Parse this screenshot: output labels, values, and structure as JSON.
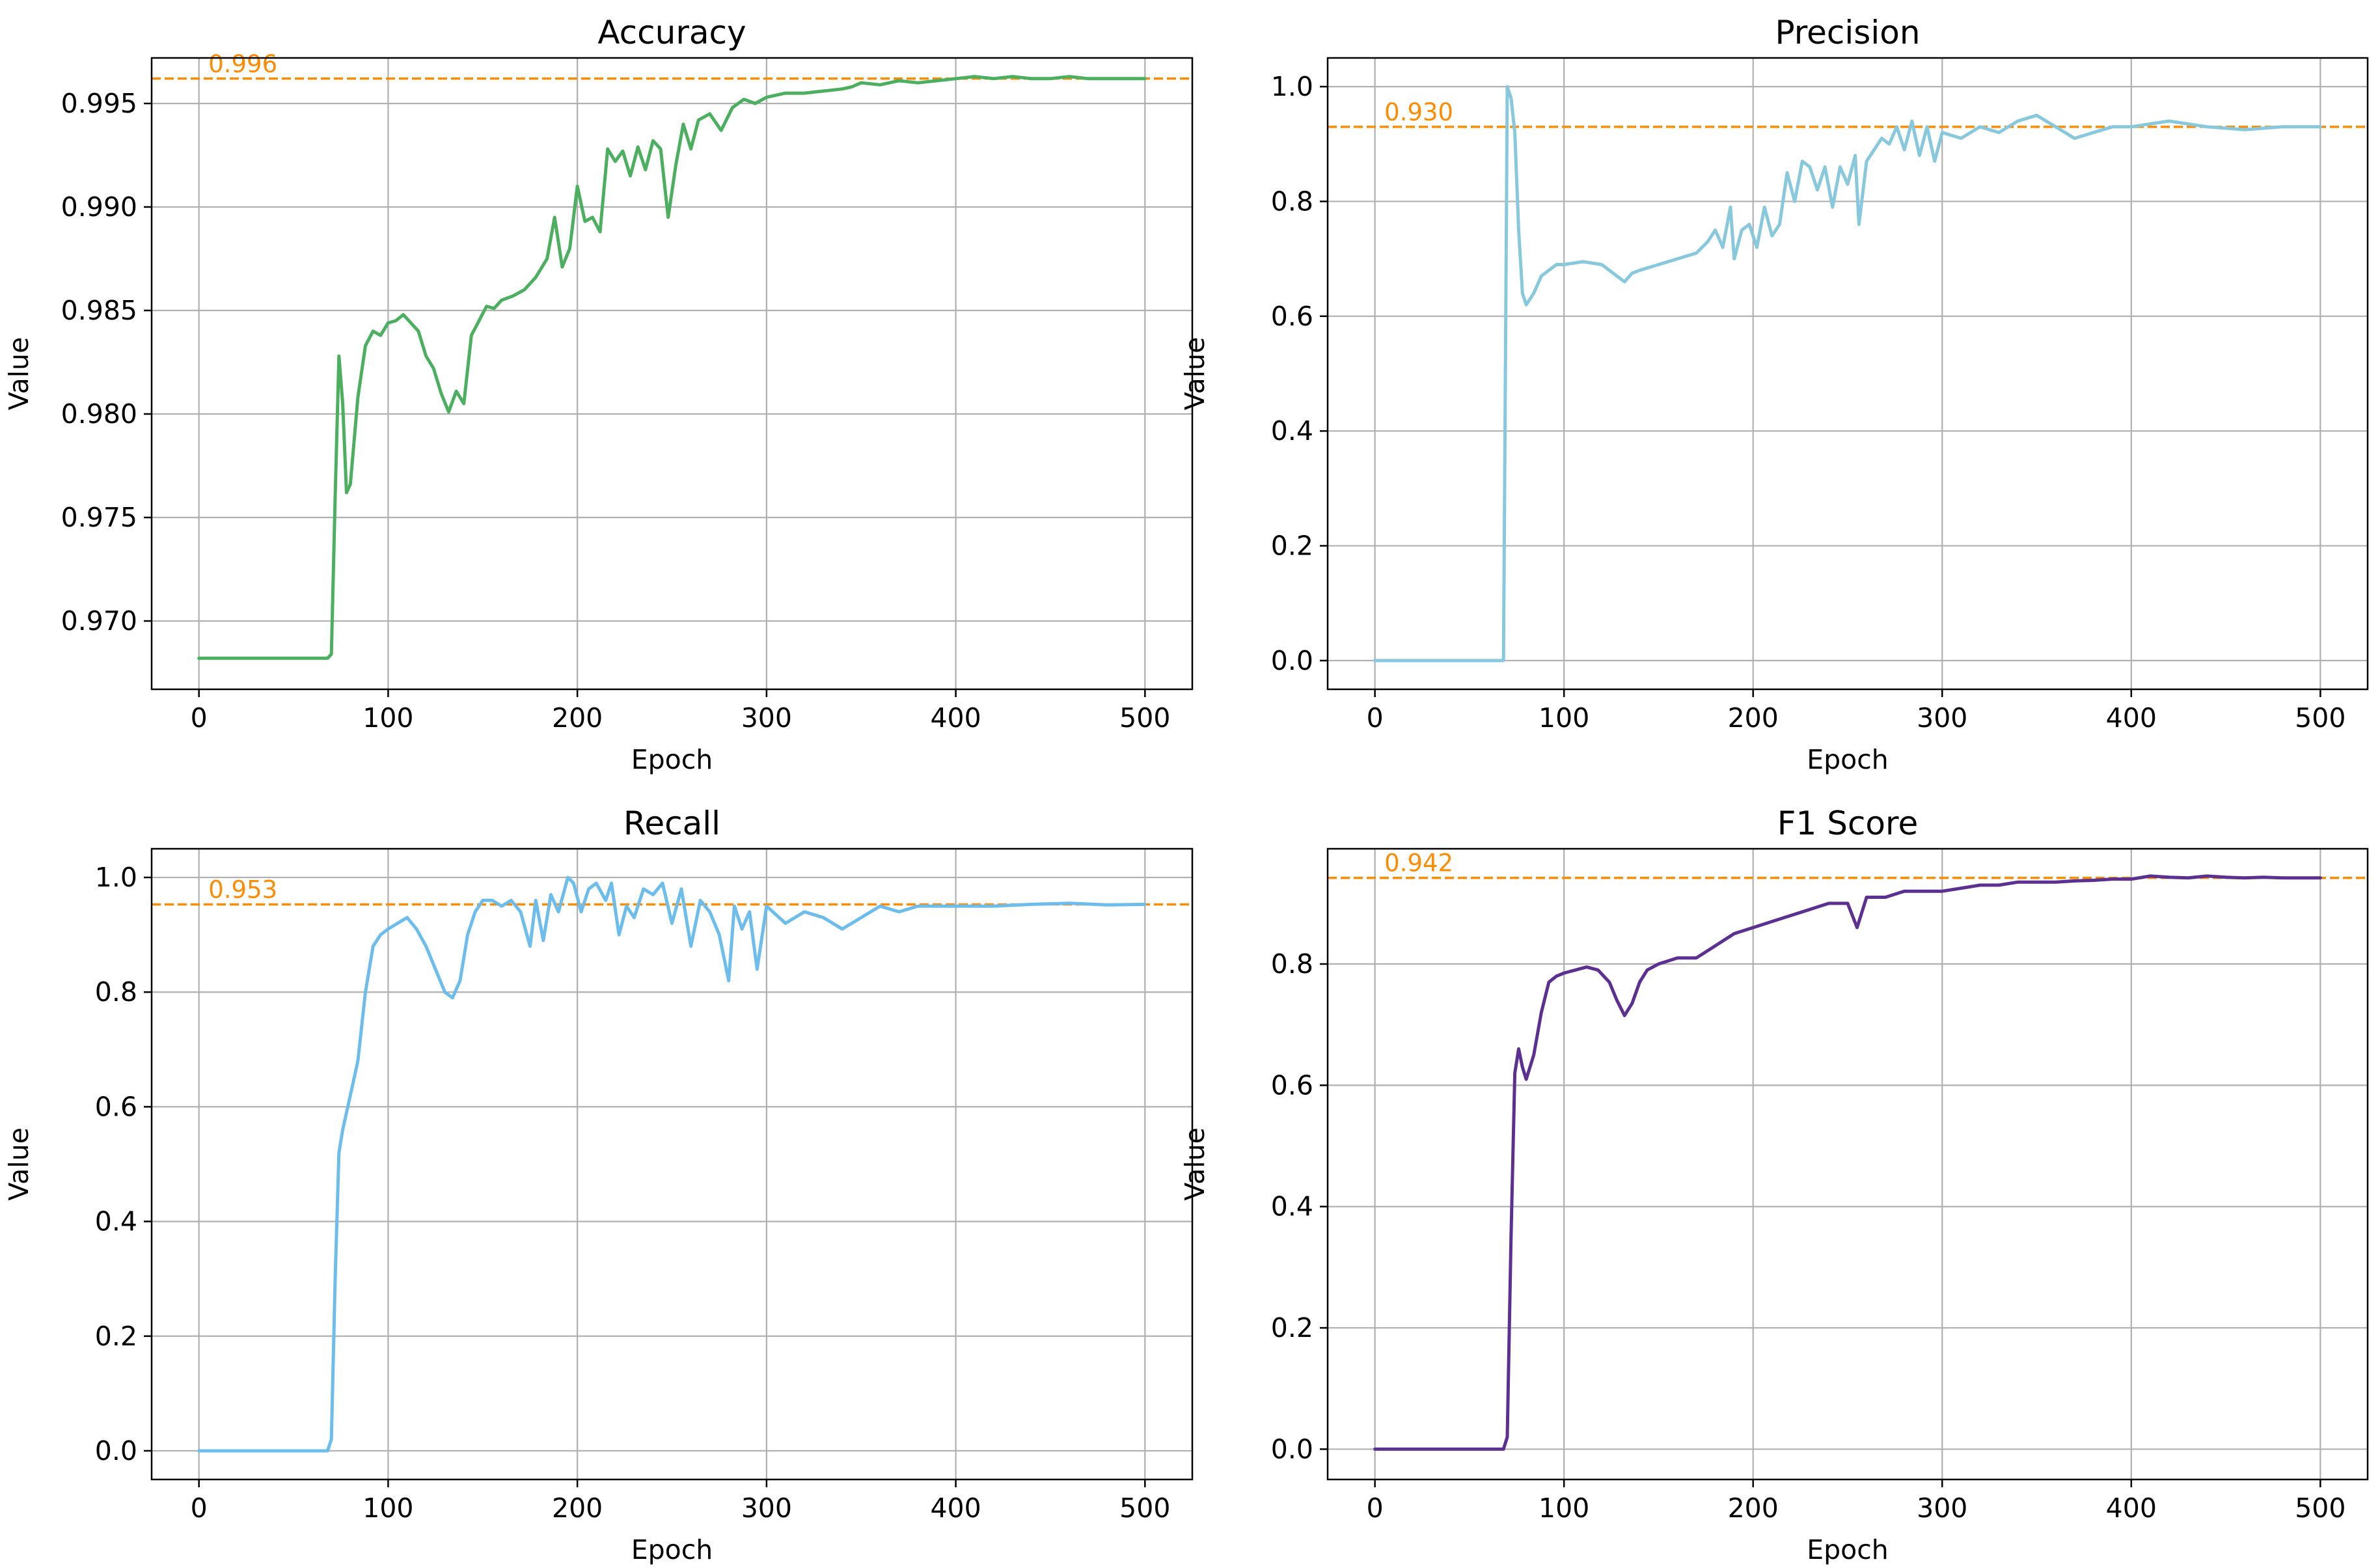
{
  "chart_data": [
    {
      "type": "line",
      "title": "Accuracy",
      "xlabel": "Epoch",
      "ylabel": "Value",
      "color": "#4caf5f",
      "xlim": [
        -25,
        525
      ],
      "ylim": [
        0.9667,
        0.9972
      ],
      "xticks": [
        0,
        100,
        200,
        300,
        400,
        500
      ],
      "yticks": [
        0.97,
        0.975,
        0.98,
        0.985,
        0.99,
        0.995
      ],
      "ytick_labels": [
        "0.970",
        "0.975",
        "0.980",
        "0.985",
        "0.990",
        "0.995"
      ],
      "reference": {
        "value": 0.9962,
        "label": "0.996",
        "color": "#ff8c00"
      },
      "series": [
        {
          "name": "Accuracy",
          "x": [
            0,
            68,
            70,
            72,
            74,
            76,
            78,
            80,
            84,
            88,
            92,
            96,
            100,
            104,
            108,
            112,
            116,
            120,
            124,
            128,
            132,
            136,
            140,
            144,
            148,
            152,
            156,
            160,
            166,
            172,
            178,
            184,
            188,
            192,
            196,
            200,
            204,
            208,
            212,
            216,
            220,
            224,
            228,
            232,
            236,
            240,
            244,
            248,
            252,
            256,
            260,
            264,
            270,
            276,
            282,
            288,
            294,
            300,
            310,
            320,
            330,
            340,
            345,
            350,
            360,
            370,
            380,
            390,
            400,
            410,
            420,
            430,
            440,
            450,
            460,
            470,
            480,
            490,
            500
          ],
          "y": [
            0.9682,
            0.9682,
            0.9684,
            0.976,
            0.9828,
            0.9805,
            0.9762,
            0.9766,
            0.9808,
            0.9833,
            0.984,
            0.9838,
            0.9844,
            0.9845,
            0.9848,
            0.9844,
            0.984,
            0.9828,
            0.9822,
            0.981,
            0.9801,
            0.9811,
            0.9805,
            0.9838,
            0.9845,
            0.9852,
            0.9851,
            0.9855,
            0.9857,
            0.986,
            0.9866,
            0.9875,
            0.9895,
            0.9871,
            0.988,
            0.991,
            0.9893,
            0.9895,
            0.9888,
            0.9928,
            0.9922,
            0.9927,
            0.9915,
            0.9929,
            0.9918,
            0.9932,
            0.9928,
            0.9895,
            0.992,
            0.994,
            0.9928,
            0.9942,
            0.9945,
            0.9937,
            0.9948,
            0.9952,
            0.995,
            0.9953,
            0.9955,
            0.9955,
            0.9956,
            0.9957,
            0.9958,
            0.996,
            0.9959,
            0.9961,
            0.996,
            0.9961,
            0.9962,
            0.9963,
            0.9962,
            0.9963,
            0.9962,
            0.9962,
            0.9963,
            0.9962,
            0.9962,
            0.9962,
            0.9962
          ]
        }
      ]
    },
    {
      "type": "line",
      "title": "Precision",
      "xlabel": "Epoch",
      "ylabel": "Value",
      "color": "#88c8dc",
      "xlim": [
        -25,
        525
      ],
      "ylim": [
        -0.05,
        1.05
      ],
      "xticks": [
        0,
        100,
        200,
        300,
        400,
        500
      ],
      "yticks": [
        0.0,
        0.2,
        0.4,
        0.6,
        0.8,
        1.0
      ],
      "ytick_labels": [
        "0.0",
        "0.2",
        "0.4",
        "0.6",
        "0.8",
        "1.0"
      ],
      "reference": {
        "value": 0.93,
        "label": "0.930",
        "color": "#ff8c00"
      },
      "series": [
        {
          "name": "Precision",
          "x": [
            0,
            68,
            69,
            70,
            72,
            74,
            76,
            78,
            80,
            84,
            88,
            92,
            96,
            100,
            110,
            120,
            128,
            132,
            136,
            140,
            150,
            160,
            170,
            176,
            180,
            184,
            188,
            190,
            194,
            198,
            202,
            206,
            210,
            214,
            218,
            222,
            226,
            230,
            234,
            238,
            242,
            246,
            250,
            254,
            256,
            260,
            264,
            268,
            272,
            276,
            280,
            284,
            288,
            292,
            296,
            300,
            310,
            320,
            330,
            340,
            350,
            360,
            370,
            380,
            390,
            400,
            420,
            440,
            460,
            480,
            500
          ],
          "y": [
            0.0,
            0.0,
            0.5,
            1.0,
            0.98,
            0.92,
            0.75,
            0.64,
            0.62,
            0.64,
            0.67,
            0.68,
            0.69,
            0.69,
            0.695,
            0.69,
            0.67,
            0.66,
            0.675,
            0.68,
            0.69,
            0.7,
            0.71,
            0.73,
            0.75,
            0.72,
            0.79,
            0.7,
            0.75,
            0.76,
            0.72,
            0.79,
            0.74,
            0.76,
            0.85,
            0.8,
            0.87,
            0.86,
            0.82,
            0.86,
            0.79,
            0.86,
            0.83,
            0.88,
            0.76,
            0.87,
            0.89,
            0.91,
            0.9,
            0.93,
            0.89,
            0.94,
            0.88,
            0.93,
            0.87,
            0.92,
            0.91,
            0.93,
            0.92,
            0.94,
            0.95,
            0.93,
            0.91,
            0.92,
            0.93,
            0.93,
            0.94,
            0.93,
            0.925,
            0.93,
            0.93
          ]
        }
      ]
    },
    {
      "type": "line",
      "title": "Recall",
      "xlabel": "Epoch",
      "ylabel": "Value",
      "color": "#6cbcec",
      "xlim": [
        -25,
        525
      ],
      "ylim": [
        -0.05,
        1.05
      ],
      "xticks": [
        0,
        100,
        200,
        300,
        400,
        500
      ],
      "yticks": [
        0.0,
        0.2,
        0.4,
        0.6,
        0.8,
        1.0
      ],
      "ytick_labels": [
        "0.0",
        "0.2",
        "0.4",
        "0.6",
        "0.8",
        "1.0"
      ],
      "reference": {
        "value": 0.953,
        "label": "0.953",
        "color": "#ff8c00"
      },
      "series": [
        {
          "name": "Recall",
          "x": [
            0,
            68,
            70,
            72,
            74,
            76,
            80,
            84,
            88,
            92,
            96,
            100,
            105,
            110,
            115,
            120,
            125,
            130,
            134,
            138,
            142,
            146,
            150,
            155,
            160,
            165,
            170,
            175,
            178,
            182,
            186,
            190,
            195,
            198,
            202,
            206,
            210,
            215,
            218,
            222,
            226,
            230,
            235,
            240,
            245,
            250,
            255,
            260,
            265,
            270,
            275,
            280,
            283,
            287,
            291,
            295,
            300,
            310,
            320,
            330,
            340,
            350,
            360,
            370,
            380,
            400,
            420,
            440,
            460,
            480,
            500
          ],
          "y": [
            0.0,
            0.0,
            0.02,
            0.3,
            0.52,
            0.56,
            0.62,
            0.68,
            0.8,
            0.88,
            0.9,
            0.91,
            0.92,
            0.93,
            0.91,
            0.88,
            0.84,
            0.8,
            0.79,
            0.82,
            0.9,
            0.94,
            0.96,
            0.96,
            0.95,
            0.96,
            0.94,
            0.88,
            0.96,
            0.89,
            0.97,
            0.94,
            1.0,
            0.99,
            0.94,
            0.98,
            0.99,
            0.96,
            0.99,
            0.9,
            0.95,
            0.93,
            0.98,
            0.97,
            0.99,
            0.92,
            0.98,
            0.88,
            0.96,
            0.94,
            0.9,
            0.82,
            0.95,
            0.91,
            0.94,
            0.84,
            0.95,
            0.92,
            0.94,
            0.93,
            0.91,
            0.93,
            0.95,
            0.94,
            0.95,
            0.95,
            0.95,
            0.953,
            0.955,
            0.952,
            0.953
          ]
        }
      ]
    },
    {
      "type": "line",
      "title": "F1 Score",
      "xlabel": "Epoch",
      "ylabel": "Value",
      "color": "#5b3091",
      "xlim": [
        -25,
        525
      ],
      "ylim": [
        -0.05,
        0.99
      ],
      "xticks": [
        0,
        100,
        200,
        300,
        400,
        500
      ],
      "yticks": [
        0.0,
        0.2,
        0.4,
        0.6,
        0.8
      ],
      "ytick_labels": [
        "0.0",
        "0.2",
        "0.4",
        "0.6",
        "0.8"
      ],
      "reference": {
        "value": 0.942,
        "label": "0.942",
        "color": "#ff8c00"
      },
      "series": [
        {
          "name": "F1 Score",
          "x": [
            0,
            68,
            70,
            72,
            74,
            76,
            78,
            80,
            84,
            88,
            92,
            96,
            100,
            106,
            112,
            118,
            124,
            128,
            132,
            136,
            140,
            144,
            150,
            160,
            170,
            180,
            190,
            200,
            210,
            220,
            230,
            240,
            250,
            255,
            260,
            270,
            280,
            290,
            300,
            310,
            320,
            330,
            340,
            350,
            360,
            370,
            380,
            390,
            400,
            410,
            420,
            430,
            440,
            450,
            460,
            470,
            480,
            490,
            500
          ],
          "y": [
            0.0,
            0.0,
            0.02,
            0.35,
            0.62,
            0.66,
            0.63,
            0.61,
            0.65,
            0.72,
            0.77,
            0.78,
            0.785,
            0.79,
            0.795,
            0.79,
            0.77,
            0.74,
            0.715,
            0.735,
            0.77,
            0.79,
            0.8,
            0.81,
            0.81,
            0.83,
            0.85,
            0.86,
            0.87,
            0.88,
            0.89,
            0.9,
            0.9,
            0.86,
            0.91,
            0.91,
            0.92,
            0.92,
            0.92,
            0.925,
            0.93,
            0.93,
            0.935,
            0.935,
            0.935,
            0.937,
            0.938,
            0.94,
            0.94,
            0.945,
            0.943,
            0.942,
            0.945,
            0.943,
            0.942,
            0.943,
            0.942,
            0.942,
            0.942
          ]
        }
      ]
    }
  ]
}
